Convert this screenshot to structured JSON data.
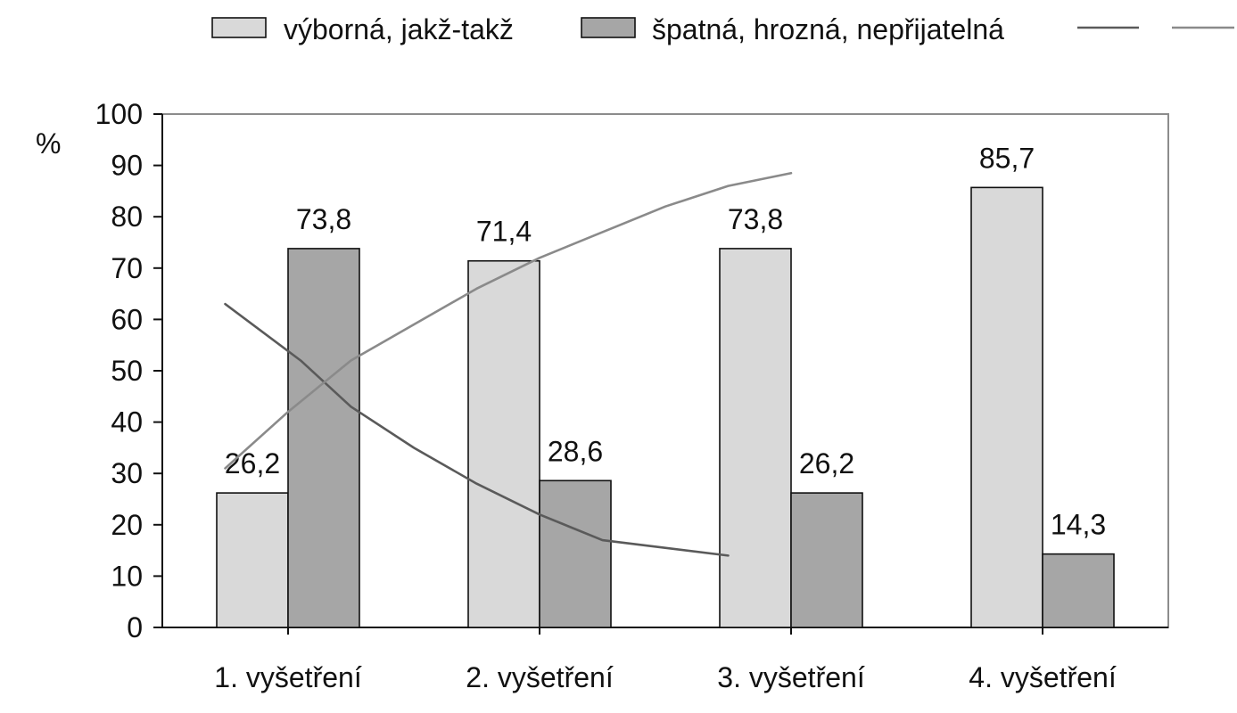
{
  "chart_data": {
    "type": "bar",
    "ylabel": "%",
    "ylim": [
      0,
      100
    ],
    "yticks": [
      0,
      10,
      20,
      30,
      40,
      50,
      60,
      70,
      80,
      90,
      100
    ],
    "categories": [
      "1. vyšetření",
      "2. vyšetření",
      "3. vyšetření",
      "4.  vyšetření"
    ],
    "series": [
      {
        "name": "výborná, jakž-takž",
        "values": [
          26.2,
          71.4,
          73.8,
          85.7
        ],
        "labels": [
          "26,2",
          "71,4",
          "73,8",
          "85,7"
        ],
        "color": "#d9d9d9"
      },
      {
        "name": "špatná, hrozná, nepřijatelná",
        "values": [
          73.8,
          28.6,
          26.2,
          14.3
        ],
        "labels": [
          "73,8",
          "28,6",
          "26,2",
          "14,3"
        ],
        "color": "#a6a6a6"
      }
    ],
    "trendlines": [
      {
        "color": "#5a5a5a",
        "start_category": 0,
        "end_category": 3,
        "points": [
          [
            0.5,
            63
          ],
          [
            1.1,
            52
          ],
          [
            1.5,
            43
          ],
          [
            2.0,
            35
          ],
          [
            2.5,
            28
          ],
          [
            3.0,
            22
          ],
          [
            3.5,
            17
          ],
          [
            4.5,
            14
          ]
        ]
      },
      {
        "color": "#8a8a8a",
        "points": [
          [
            0.5,
            31
          ],
          [
            1.0,
            42
          ],
          [
            1.5,
            52
          ],
          [
            2.0,
            59
          ],
          [
            2.5,
            66
          ],
          [
            3.0,
            72
          ],
          [
            3.5,
            77
          ],
          [
            4.0,
            82
          ],
          [
            4.5,
            86
          ],
          [
            5.0,
            88.5
          ]
        ]
      }
    ],
    "legend": {
      "position": "top"
    },
    "grid": false
  }
}
